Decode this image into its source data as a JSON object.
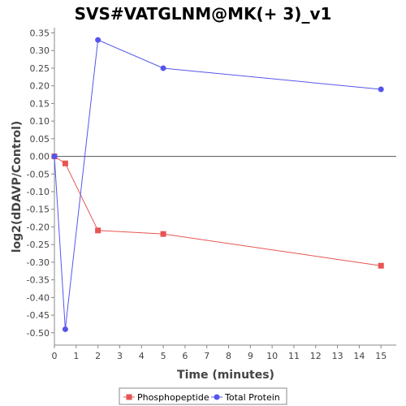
{
  "chart_data": {
    "type": "line",
    "title": "SVS#VATGLNM@MK(+ 3)_v1",
    "xlabel": "Time (minutes)",
    "ylabel": "log2(dDAVP/Control)",
    "xlim": [
      0,
      15.7
    ],
    "ylim": [
      -0.535,
      0.365
    ],
    "x_ticks": [
      0,
      1,
      2,
      3,
      4,
      5,
      6,
      7,
      8,
      9,
      10,
      11,
      12,
      13,
      14,
      15
    ],
    "y_ticks": [
      0.35,
      0.3,
      0.25,
      0.2,
      0.15,
      0.1,
      0.05,
      0.0,
      -0.05,
      -0.1,
      -0.15,
      -0.2,
      -0.25,
      -0.3,
      -0.35,
      -0.4,
      -0.45,
      -0.5
    ],
    "zero_line": true,
    "grid": false,
    "legend_position": "bottom",
    "series": [
      {
        "name": "Phosphopeptide",
        "color": "#e85454",
        "marker": "square",
        "x": [
          0,
          0.5,
          2,
          5,
          15
        ],
        "y": [
          0.0,
          -0.02,
          -0.21,
          -0.22,
          -0.31
        ]
      },
      {
        "name": "Total Protein",
        "color": "#5555ee",
        "marker": "circle",
        "x": [
          0,
          0.5,
          2,
          5,
          15
        ],
        "y": [
          0.0,
          -0.49,
          0.33,
          0.25,
          0.19
        ]
      }
    ]
  }
}
